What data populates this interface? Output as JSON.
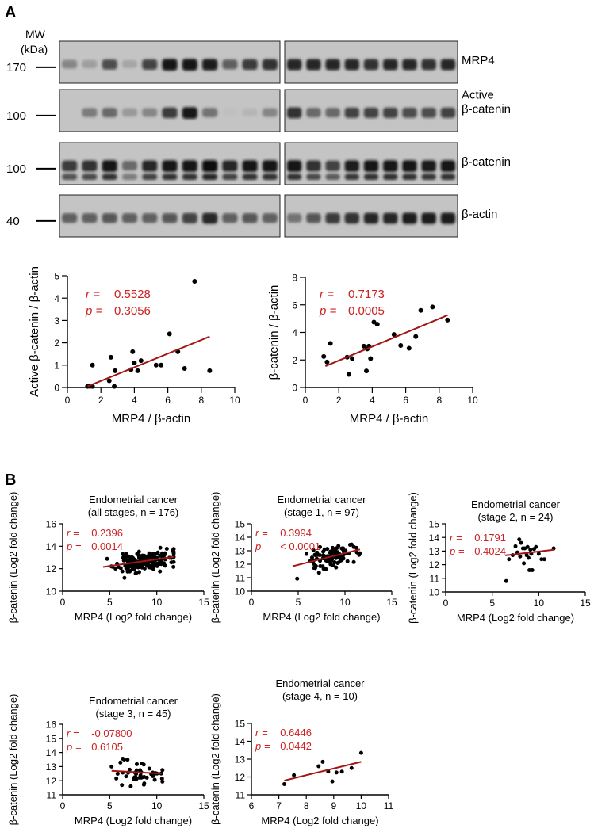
{
  "panel_labels": [
    "A",
    "B"
  ],
  "blots": {
    "mw_header": [
      "MW",
      "(kDa)"
    ],
    "rows": [
      {
        "marker": "170",
        "protein": [
          "MRP4"
        ],
        "left": [
          0.35,
          0.22,
          0.65,
          0.18,
          0.7,
          0.95,
          0.95,
          0.9,
          0.55,
          0.75,
          0.8
        ],
        "right": [
          0.85,
          0.85,
          0.85,
          0.85,
          0.8,
          0.85,
          0.85,
          0.8,
          0.85
        ]
      },
      {
        "marker": "100",
        "protein": [
          "Active",
          "β-catenin"
        ],
        "left": [
          0.0,
          0.4,
          0.5,
          0.25,
          0.35,
          0.75,
          0.95,
          0.45,
          0.05,
          0.1,
          0.35
        ],
        "right": [
          0.8,
          0.5,
          0.5,
          0.7,
          0.7,
          0.7,
          0.65,
          0.65,
          0.7
        ]
      },
      {
        "marker": "100",
        "protein": [
          "β-catenin"
        ],
        "left": [
          0.75,
          0.8,
          0.95,
          0.5,
          0.85,
          0.95,
          0.95,
          1.0,
          0.85,
          0.95,
          0.95
        ],
        "right": [
          0.95,
          0.8,
          0.7,
          0.9,
          0.95,
          0.95,
          0.95,
          0.9,
          0.95
        ]
      },
      {
        "marker": "40",
        "protein": [
          "β-actin"
        ],
        "left": [
          0.55,
          0.55,
          0.6,
          0.55,
          0.55,
          0.6,
          0.7,
          0.85,
          0.55,
          0.6,
          0.55
        ],
        "right": [
          0.45,
          0.6,
          0.75,
          0.8,
          0.85,
          0.85,
          0.9,
          0.9,
          0.9
        ]
      }
    ]
  },
  "colors": {
    "points": "#000000",
    "fit_line": "#a31515",
    "stats_text": "#cc2222",
    "axis": "#000000"
  },
  "chart_data": [
    {
      "id": "A-left",
      "type": "scatter",
      "xlabel": "MRP4 / β-actin",
      "ylabel": "Active β-catenin / β-actin",
      "xlim": [
        0,
        10
      ],
      "ylim": [
        0,
        5
      ],
      "xticks": [
        0,
        2,
        4,
        6,
        8,
        10
      ],
      "yticks": [
        0,
        1,
        2,
        3,
        4,
        5
      ],
      "stats": {
        "r_label": "r =",
        "r": "0.5528",
        "p_label": "p =",
        "p": "0.3056"
      },
      "fit": {
        "x": [
          1.2,
          8.5
        ],
        "y": [
          0.05,
          2.28
        ]
      },
      "points": [
        [
          1.2,
          0.05
        ],
        [
          1.35,
          0.05
        ],
        [
          1.5,
          0.05
        ],
        [
          1.5,
          1.0
        ],
        [
          2.5,
          0.3
        ],
        [
          2.6,
          1.35
        ],
        [
          2.8,
          0.05
        ],
        [
          2.85,
          0.75
        ],
        [
          3.8,
          0.8
        ],
        [
          3.9,
          1.6
        ],
        [
          4.0,
          1.1
        ],
        [
          4.2,
          0.75
        ],
        [
          4.4,
          1.2
        ],
        [
          5.3,
          1.0
        ],
        [
          5.6,
          1.0
        ],
        [
          6.1,
          2.4
        ],
        [
          6.6,
          1.6
        ],
        [
          7.0,
          0.85
        ],
        [
          7.6,
          4.75
        ],
        [
          8.5,
          0.75
        ]
      ]
    },
    {
      "id": "A-right",
      "type": "scatter",
      "xlabel": "MRP4 / β-actin",
      "ylabel": "β-catenin / β-actin",
      "xlim": [
        0,
        10
      ],
      "ylim": [
        0,
        8
      ],
      "xticks": [
        0,
        2,
        4,
        6,
        8,
        10
      ],
      "yticks": [
        0,
        2,
        4,
        6,
        8
      ],
      "stats": {
        "r_label": "r =",
        "r": "0.7173",
        "p_label": "p =",
        "p": "0.0005"
      },
      "fit": {
        "x": [
          1.2,
          8.5
        ],
        "y": [
          1.55,
          5.25
        ]
      },
      "points": [
        [
          1.1,
          2.25
        ],
        [
          1.3,
          1.85
        ],
        [
          1.5,
          3.2
        ],
        [
          2.5,
          2.2
        ],
        [
          2.6,
          0.95
        ],
        [
          2.8,
          2.1
        ],
        [
          3.5,
          3.0
        ],
        [
          3.65,
          1.2
        ],
        [
          3.7,
          2.8
        ],
        [
          3.8,
          3.0
        ],
        [
          3.9,
          2.1
        ],
        [
          4.1,
          4.75
        ],
        [
          4.3,
          4.6
        ],
        [
          5.3,
          3.85
        ],
        [
          5.7,
          3.05
        ],
        [
          6.2,
          2.85
        ],
        [
          6.6,
          3.7
        ],
        [
          6.9,
          5.6
        ],
        [
          7.6,
          5.85
        ],
        [
          8.5,
          4.9
        ]
      ]
    },
    {
      "id": "B1",
      "type": "scatter",
      "title": [
        "Endometrial cancer",
        "(all stages, n = 176)"
      ],
      "xlabel": "MRP4 (Log2 fold change)",
      "ylabel": "β-catenin (Log2 fold change)",
      "xlim": [
        0,
        15
      ],
      "ylim": [
        10,
        16
      ],
      "xticks": [
        0,
        5,
        10,
        15
      ],
      "yticks": [
        10,
        12,
        14,
        16
      ],
      "stats": {
        "r_label": "r =",
        "r": "0.2396",
        "p_label": "p =",
        "p": "0.0014"
      },
      "fit": {
        "x": [
          4.3,
          11.8
        ],
        "y": [
          12.15,
          13.05
        ]
      },
      "cloud": {
        "n": 176,
        "seed": 11,
        "cx": 8.6,
        "sx": 1.45,
        "xmin": 4.3,
        "xmax": 11.8,
        "slope": 0.12,
        "cy": 12.62,
        "sy": 0.42,
        "ymin": 10.9,
        "ymax": 14.2
      }
    },
    {
      "id": "B2",
      "type": "scatter",
      "title": [
        "Endometrial cancer",
        "(stage 1, n = 97)"
      ],
      "xlabel": "MRP4 (Log2 fold change)",
      "ylabel": "β-catenin (Log2 fold change)",
      "xlim": [
        0,
        15
      ],
      "ylim": [
        10,
        15
      ],
      "xticks": [
        0,
        5,
        10,
        15
      ],
      "yticks": [
        10,
        11,
        12,
        13,
        14,
        15
      ],
      "stats": {
        "r_label": "r =",
        "r": "0.3994",
        "p_label": "p",
        "p": "< 0.0001"
      },
      "fit": {
        "x": [
          4.4,
          11.6
        ],
        "y": [
          11.85,
          13.1
        ]
      },
      "cloud": {
        "n": 97,
        "seed": 23,
        "cx": 8.5,
        "sx": 1.4,
        "xmin": 4.3,
        "xmax": 11.6,
        "slope": 0.17,
        "cy": 12.55,
        "sy": 0.45,
        "ymin": 10.9,
        "ymax": 13.7
      }
    },
    {
      "id": "B3",
      "type": "scatter",
      "title": [
        "Endometrial cancer",
        "(stage 2, n = 24)"
      ],
      "xlabel": "MRP4 (Log2 fold change)",
      "ylabel": "β-catenin (Log2 fold change)",
      "xlim": [
        0,
        15
      ],
      "ylim": [
        10,
        15
      ],
      "xticks": [
        0,
        5,
        10,
        15
      ],
      "yticks": [
        10,
        11,
        12,
        13,
        14,
        15
      ],
      "stats": {
        "r_label": "r =",
        "r": "0.1791",
        "p_label": "p =",
        "p": "0.4024"
      },
      "fit": {
        "x": [
          6.4,
          11.7
        ],
        "y": [
          12.68,
          13.1
        ]
      },
      "points": [
        [
          6.5,
          10.8
        ],
        [
          6.8,
          12.4
        ],
        [
          7.2,
          12.7
        ],
        [
          7.5,
          13.35
        ],
        [
          7.7,
          12.9
        ],
        [
          7.9,
          13.85
        ],
        [
          8.0,
          12.6
        ],
        [
          8.1,
          13.6
        ],
        [
          8.3,
          13.2
        ],
        [
          8.4,
          12.1
        ],
        [
          8.5,
          13.2
        ],
        [
          8.7,
          12.7
        ],
        [
          8.8,
          13.3
        ],
        [
          8.9,
          12.5
        ],
        [
          9.0,
          11.6
        ],
        [
          9.1,
          13.1
        ],
        [
          9.2,
          12.8
        ],
        [
          9.3,
          11.6
        ],
        [
          9.5,
          13.15
        ],
        [
          9.7,
          13.3
        ],
        [
          10.0,
          12.8
        ],
        [
          10.3,
          12.4
        ],
        [
          10.6,
          12.4
        ],
        [
          11.6,
          13.2
        ]
      ]
    },
    {
      "id": "B4",
      "type": "scatter",
      "title": [
        "Endometrial cancer",
        "(stage 3, n = 45)"
      ],
      "xlabel": "MRP4 (Log2 fold change)",
      "ylabel": "β-catenin (Log2 fold change)",
      "xlim": [
        0,
        15
      ],
      "ylim": [
        11,
        16
      ],
      "xticks": [
        0,
        5,
        10,
        15
      ],
      "yticks": [
        11,
        12,
        13,
        14,
        15,
        16
      ],
      "stats": {
        "r_label": "r =",
        "r": "-0.07800",
        "p_label": "p =",
        "p": "0.6105"
      },
      "fit": {
        "x": [
          5.2,
          10.5
        ],
        "y": [
          12.7,
          12.5
        ]
      },
      "cloud": {
        "n": 45,
        "seed": 37,
        "cx": 8.3,
        "sx": 1.25,
        "xmin": 5.2,
        "xmax": 10.6,
        "slope": -0.03,
        "cy": 12.6,
        "sy": 0.5,
        "ymin": 11.6,
        "ymax": 14.3
      }
    },
    {
      "id": "B5",
      "type": "scatter",
      "title": [
        "Endometrial cancer",
        "(stage 4, n = 10)"
      ],
      "xlabel": "MRP4 (Log2 fold change)",
      "ylabel": "β-catenin (Log2 fold change)",
      "xlim": [
        6,
        11
      ],
      "ylim": [
        11,
        15
      ],
      "xticks": [
        6,
        7,
        8,
        9,
        10,
        11
      ],
      "yticks": [
        11,
        12,
        13,
        14,
        15
      ],
      "stats": {
        "r_label": "r =",
        "r": "0.6446",
        "p_label": "p =",
        "p": "0.0442"
      },
      "fit": {
        "x": [
          7.2,
          10.0
        ],
        "y": [
          11.8,
          12.85
        ]
      },
      "points": [
        [
          7.2,
          11.6
        ],
        [
          7.55,
          12.1
        ],
        [
          8.45,
          12.6
        ],
        [
          8.6,
          12.85
        ],
        [
          8.8,
          12.3
        ],
        [
          8.95,
          11.75
        ],
        [
          9.1,
          12.25
        ],
        [
          9.3,
          12.3
        ],
        [
          9.65,
          12.5
        ],
        [
          10.0,
          13.35
        ]
      ]
    }
  ]
}
